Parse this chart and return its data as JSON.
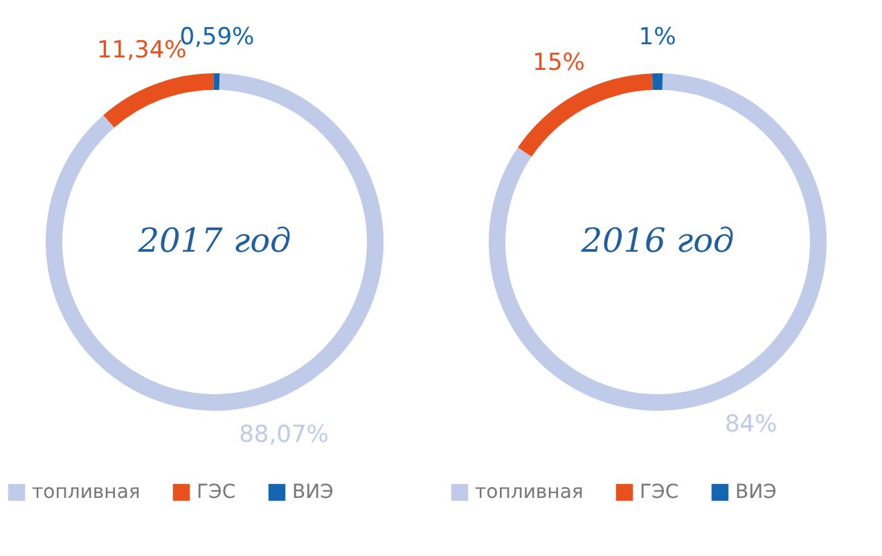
{
  "chart_data": [
    {
      "type": "donut",
      "title": "2017 год",
      "categories": [
        "топливная",
        "ГЭС",
        "ВИЭ"
      ],
      "values": [
        88.07,
        11.34,
        0.59
      ],
      "value_labels": [
        "88,07%",
        "11,34%",
        "0,59%"
      ],
      "colors": [
        "#bfcbe8",
        "#e8501e",
        "#1565b0"
      ],
      "legend": "bottom"
    },
    {
      "type": "donut",
      "title": "2016 год",
      "categories": [
        "топливная",
        "ГЭС",
        "ВИЭ"
      ],
      "values": [
        84,
        15,
        1
      ],
      "value_labels": [
        "84%",
        "15%",
        "1%"
      ],
      "colors": [
        "#bfcbe8",
        "#e8501e",
        "#1565b0"
      ],
      "legend": "bottom"
    }
  ]
}
